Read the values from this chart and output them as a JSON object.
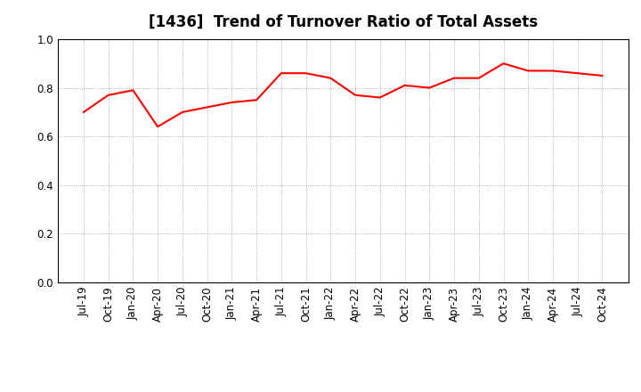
{
  "title": "[1436]  Trend of Turnover Ratio of Total Assets",
  "x_labels": [
    "Jul-19",
    "Oct-19",
    "Jan-20",
    "Apr-20",
    "Jul-20",
    "Oct-20",
    "Jan-21",
    "Apr-21",
    "Jul-21",
    "Oct-21",
    "Jan-22",
    "Apr-22",
    "Jul-22",
    "Oct-22",
    "Jan-23",
    "Apr-23",
    "Jul-23",
    "Oct-23",
    "Jan-24",
    "Apr-24",
    "Jul-24",
    "Oct-24"
  ],
  "y_values": [
    0.7,
    0.77,
    0.79,
    0.64,
    0.7,
    0.72,
    0.74,
    0.75,
    0.86,
    0.86,
    0.84,
    0.77,
    0.76,
    0.81,
    0.8,
    0.84,
    0.84,
    0.9,
    0.87,
    0.87,
    0.86,
    0.85
  ],
  "line_color": "#FF0000",
  "line_width": 1.5,
  "ylim": [
    0.0,
    1.0
  ],
  "yticks": [
    0.0,
    0.2,
    0.4,
    0.6,
    0.8,
    1.0
  ],
  "grid_color": "#999999",
  "background_color": "#ffffff",
  "title_fontsize": 12,
  "tick_fontsize": 8.5
}
